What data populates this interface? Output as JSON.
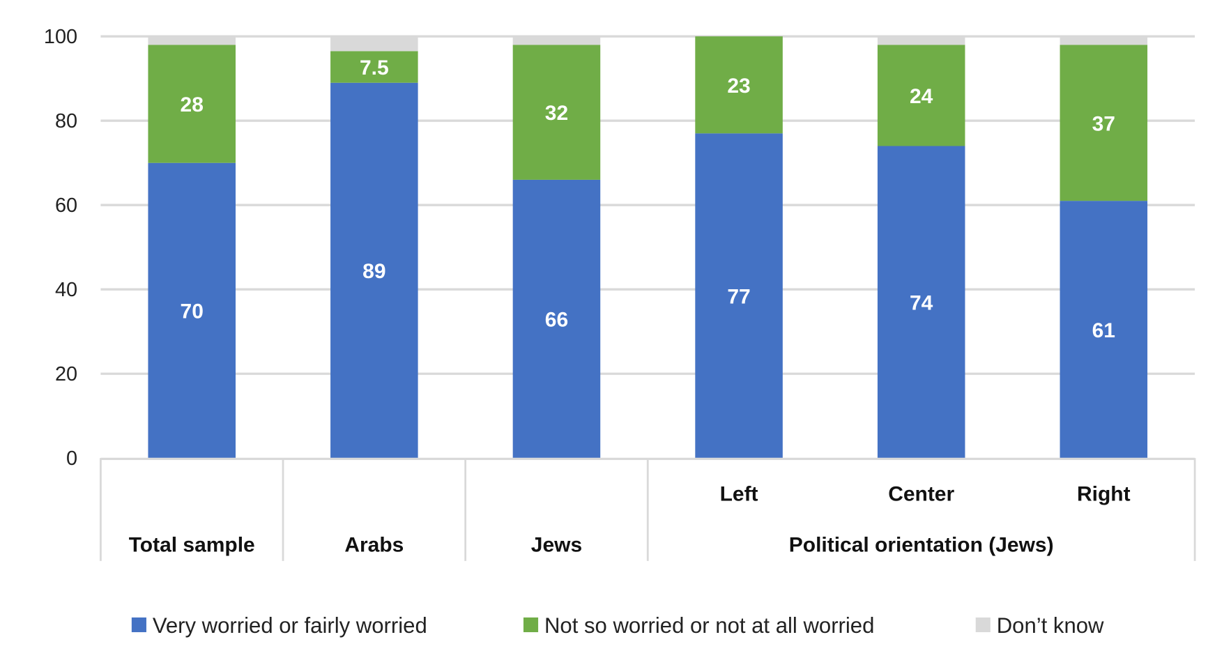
{
  "chart_data": {
    "type": "bar",
    "stacked": true,
    "title": "",
    "xlabel": "",
    "ylabel": "",
    "ylim": [
      0,
      100
    ],
    "yticks": [
      0,
      20,
      40,
      60,
      80,
      100
    ],
    "grid": true,
    "legend_position": "bottom",
    "categories": [
      "Total sample",
      "Arabs",
      "Jews",
      "Left",
      "Center",
      "Right"
    ],
    "category_groups": [
      {
        "label": "Total sample",
        "members": [
          "Total sample"
        ],
        "show_member_labels": false
      },
      {
        "label": "Arabs",
        "members": [
          "Arabs"
        ],
        "show_member_labels": false
      },
      {
        "label": "Jews",
        "members": [
          "Jews"
        ],
        "show_member_labels": false
      },
      {
        "label": "Political orientation (Jews)",
        "members": [
          "Left",
          "Center",
          "Right"
        ],
        "show_member_labels": true
      }
    ],
    "series": [
      {
        "name": "Very worried or fairly worried",
        "color": "#4472C4",
        "values": [
          70,
          89,
          66,
          77,
          74,
          61
        ],
        "labels": [
          "70",
          "89",
          "66",
          "77",
          "74",
          "61"
        ]
      },
      {
        "name": "Not so worried or not at all worried",
        "color": "#70AD47",
        "values": [
          28,
          7.5,
          32,
          23,
          24,
          37
        ],
        "labels": [
          "28",
          "7.5",
          "32",
          "23",
          "24",
          "37"
        ]
      },
      {
        "name": "Don’t know",
        "color": "#D9D9D9",
        "values": [
          2,
          3.5,
          2,
          0,
          2,
          2
        ],
        "labels": null
      }
    ]
  }
}
